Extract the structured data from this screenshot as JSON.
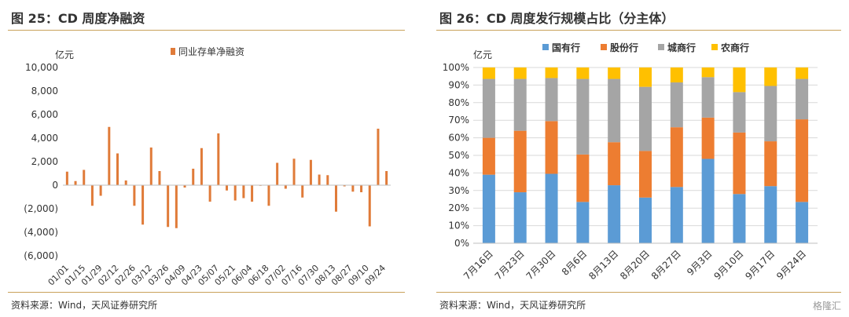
{
  "panels": {
    "left": {
      "title": "图 25：CD 周度净融资",
      "source": "资料来源：Wind，天风证券研究所"
    },
    "right": {
      "title": "图 26：CD 周度发行规模占比（分主体）",
      "source": "资料来源：Wind，天风证券研究所"
    }
  },
  "watermark": "格隆汇",
  "chart_data": [
    {
      "type": "bar",
      "ylabel": "亿元",
      "ylim": [
        -6000,
        10000
      ],
      "yticks": [
        -6000,
        -4000,
        -2000,
        0,
        2000,
        4000,
        6000,
        8000,
        10000
      ],
      "ytick_labels": [
        "(6,000)",
        "(4,000)",
        "(2,000)",
        "0",
        "2,000",
        "4,000",
        "6,000",
        "8,000",
        "10,000"
      ],
      "xtick_labels": [
        "01/01",
        "01/15",
        "01/29",
        "02/12",
        "02/26",
        "03/12",
        "03/26",
        "04/09",
        "04/23",
        "05/07",
        "05/21",
        "06/04",
        "06/18",
        "07/02",
        "07/16",
        "07/30",
        "08/13",
        "08/27",
        "09/10",
        "09/24"
      ],
      "grid": false,
      "legend_position": "top-center",
      "color": "#e07b39",
      "series": [
        {
          "name": "同业存单净融资",
          "values": [
            1150,
            350,
            1300,
            -1750,
            -900,
            4950,
            2700,
            400,
            -1750,
            -3350,
            3200,
            1200,
            -3550,
            -3650,
            -200,
            1400,
            3150,
            -1400,
            4400,
            -450,
            -1300,
            -1100,
            -1400,
            -20,
            -1750,
            1900,
            -300,
            2250,
            -1050,
            2150,
            900,
            850,
            -2250,
            -100,
            -550,
            -600,
            -3500,
            4800,
            1200
          ]
        }
      ]
    },
    {
      "type": "bar",
      "stacked": true,
      "ylabel": "亿元",
      "ylim": [
        0,
        100
      ],
      "yticks": [
        0,
        10,
        20,
        30,
        40,
        50,
        60,
        70,
        80,
        90,
        100
      ],
      "ytick_labels": [
        "0%",
        "10%",
        "20%",
        "30%",
        "40%",
        "50%",
        "60%",
        "70%",
        "80%",
        "90%",
        "100%"
      ],
      "categories": [
        "7月16日",
        "7月23日",
        "7月30日",
        "8月6日",
        "8月13日",
        "8月20日",
        "8月27日",
        "9月3日",
        "9月10日",
        "9月17日",
        "9月24日"
      ],
      "grid": true,
      "legend_position": "top",
      "series": [
        {
          "name": "国有行",
          "color": "#5b9bd5",
          "values": [
            39,
            29,
            39.5,
            23.5,
            33,
            26,
            32,
            48,
            28,
            32.5,
            23.5
          ]
        },
        {
          "name": "股份行",
          "color": "#ed7d31",
          "values": [
            21,
            35,
            30,
            27,
            24.5,
            26.5,
            34,
            23.5,
            35,
            25.5,
            47
          ]
        },
        {
          "name": "城商行",
          "color": "#a5a5a5",
          "values": [
            33.5,
            29.5,
            24.5,
            43,
            36,
            36.5,
            25.5,
            23,
            23,
            31.5,
            23
          ]
        },
        {
          "name": "农商行",
          "color": "#ffc000",
          "values": [
            6.5,
            6.5,
            6,
            6.5,
            6.5,
            11,
            8.5,
            5.5,
            14,
            10.5,
            6.5
          ]
        }
      ]
    }
  ]
}
